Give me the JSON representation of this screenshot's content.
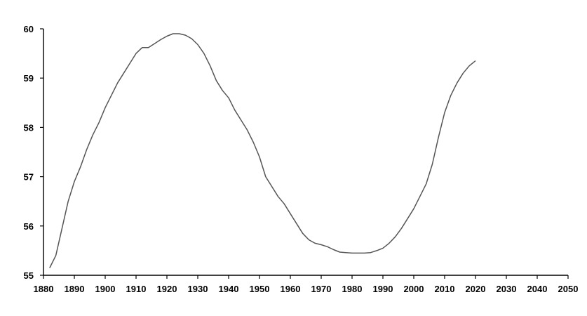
{
  "chart_data": {
    "type": "line",
    "title": "",
    "xlabel": "",
    "ylabel": "",
    "xlim": [
      1880,
      2050
    ],
    "ylim": [
      55,
      60
    ],
    "x_ticks": [
      1880,
      1890,
      1900,
      1910,
      1920,
      1930,
      1940,
      1950,
      1960,
      1970,
      1980,
      1990,
      2000,
      2010,
      2020,
      2030,
      2040,
      2050
    ],
    "y_ticks": [
      55,
      56,
      57,
      58,
      59,
      60
    ],
    "grid": false,
    "legend": "none",
    "series": [
      {
        "color": "#555555",
        "x": [
          1882,
          1884,
          1886,
          1888,
          1890,
          1892,
          1894,
          1896,
          1898,
          1900,
          1902,
          1904,
          1906,
          1908,
          1910,
          1912,
          1914,
          1916,
          1918,
          1920,
          1922,
          1924,
          1926,
          1928,
          1930,
          1932,
          1934,
          1936,
          1938,
          1940,
          1942,
          1944,
          1946,
          1948,
          1950,
          1952,
          1954,
          1956,
          1958,
          1960,
          1962,
          1964,
          1966,
          1968,
          1970,
          1972,
          1974,
          1976,
          1978,
          1980,
          1982,
          1984,
          1986,
          1988,
          1990,
          1992,
          1994,
          1996,
          1998,
          2000,
          2002,
          2004,
          2006,
          2008,
          2010,
          2012,
          2014,
          2016,
          2018,
          2020
        ],
        "y": [
          55.15,
          55.4,
          55.95,
          56.5,
          56.9,
          57.2,
          57.55,
          57.85,
          58.1,
          58.4,
          58.65,
          58.9,
          59.1,
          59.3,
          59.5,
          59.62,
          59.62,
          59.7,
          59.78,
          59.85,
          59.9,
          59.9,
          59.87,
          59.8,
          59.68,
          59.5,
          59.25,
          58.95,
          58.75,
          58.6,
          58.35,
          58.15,
          57.95,
          57.7,
          57.4,
          57.0,
          56.8,
          56.6,
          56.45,
          56.25,
          56.05,
          55.85,
          55.72,
          55.65,
          55.62,
          55.58,
          55.52,
          55.47,
          55.46,
          55.45,
          55.45,
          55.45,
          55.46,
          55.5,
          55.55,
          55.65,
          55.78,
          55.95,
          56.15,
          56.35,
          56.6,
          56.85,
          57.25,
          57.8,
          58.3,
          58.65,
          58.9,
          59.1,
          59.25,
          59.35
        ]
      }
    ]
  }
}
